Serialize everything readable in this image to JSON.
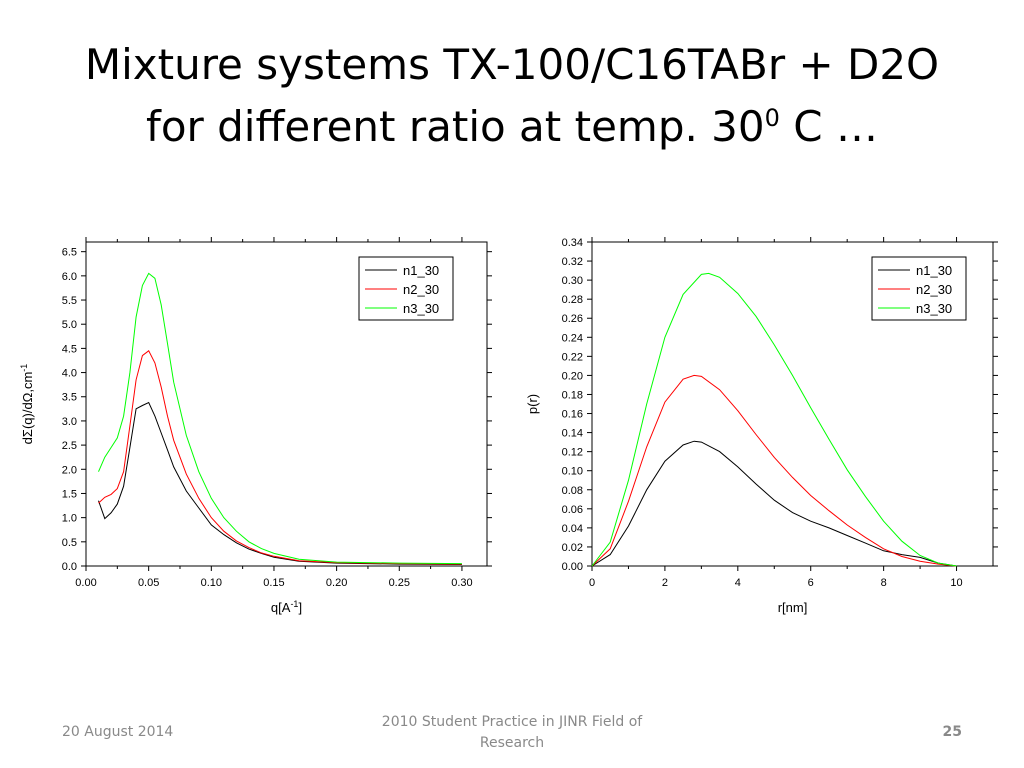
{
  "slide": {
    "title_line1": "Mixture systems TX-100/C16TABr + D2O",
    "title_line2_pre": "for different ratio at temp. 30",
    "title_sup": "0",
    "title_line2_post": " C …"
  },
  "footer": {
    "date": "20 August 2014",
    "center": "2010 Student Practice in JINR Field of Research",
    "page": "25"
  },
  "chart_data": [
    {
      "type": "line",
      "xlabel": "q[A",
      "xlabel_sup": "-1",
      "xlabel_post": "]",
      "ylabel": "dΣ(q)/dΩ,cm",
      "ylabel_sup": "-1",
      "xlim": [
        0.0,
        0.32
      ],
      "ylim": [
        0.0,
        6.7
      ],
      "xticks": [
        0.0,
        0.05,
        0.1,
        0.15,
        0.2,
        0.25,
        0.3
      ],
      "xtick_labels": [
        "0.00",
        "0.05",
        "0.10",
        "0.15",
        "0.20",
        "0.25",
        "0.30"
      ],
      "yticks": [
        0.0,
        0.5,
        1.0,
        1.5,
        2.0,
        2.5,
        3.0,
        3.5,
        4.0,
        4.5,
        5.0,
        5.5,
        6.0,
        6.5
      ],
      "ytick_labels": [
        "0.0",
        "0.5",
        "1.0",
        "1.5",
        "2.0",
        "2.5",
        "3.0",
        "3.5",
        "4.0",
        "4.5",
        "5.0",
        "5.5",
        "6.0",
        "6.5"
      ],
      "grid": false,
      "legend_position": "top-right",
      "series": [
        {
          "name": "n1_30",
          "color": "#000000",
          "x": [
            0.01,
            0.015,
            0.02,
            0.025,
            0.03,
            0.035,
            0.04,
            0.045,
            0.05,
            0.055,
            0.06,
            0.065,
            0.07,
            0.08,
            0.09,
            0.1,
            0.11,
            0.12,
            0.13,
            0.14,
            0.15,
            0.17,
            0.2,
            0.25,
            0.3
          ],
          "y": [
            1.35,
            0.98,
            1.1,
            1.28,
            1.65,
            2.45,
            3.25,
            3.32,
            3.38,
            3.1,
            2.75,
            2.4,
            2.05,
            1.55,
            1.2,
            0.85,
            0.65,
            0.48,
            0.35,
            0.26,
            0.18,
            0.1,
            0.06,
            0.04,
            0.03
          ]
        },
        {
          "name": "n2_30",
          "color": "#ff0000",
          "x": [
            0.01,
            0.015,
            0.02,
            0.025,
            0.03,
            0.035,
            0.04,
            0.045,
            0.05,
            0.055,
            0.06,
            0.065,
            0.07,
            0.08,
            0.09,
            0.1,
            0.11,
            0.12,
            0.13,
            0.14,
            0.15,
            0.17,
            0.2,
            0.25,
            0.3
          ],
          "y": [
            1.3,
            1.42,
            1.48,
            1.6,
            1.95,
            2.9,
            3.85,
            4.35,
            4.45,
            4.2,
            3.7,
            3.1,
            2.6,
            1.9,
            1.4,
            1.0,
            0.72,
            0.52,
            0.38,
            0.27,
            0.2,
            0.11,
            0.07,
            0.05,
            0.04
          ]
        },
        {
          "name": "n3_30",
          "color": "#00ff00",
          "x": [
            0.01,
            0.015,
            0.02,
            0.025,
            0.03,
            0.035,
            0.04,
            0.045,
            0.05,
            0.055,
            0.06,
            0.065,
            0.07,
            0.08,
            0.09,
            0.1,
            0.11,
            0.12,
            0.13,
            0.14,
            0.15,
            0.17,
            0.2,
            0.25,
            0.3
          ],
          "y": [
            1.95,
            2.25,
            2.45,
            2.65,
            3.1,
            4.0,
            5.15,
            5.8,
            6.05,
            5.95,
            5.4,
            4.6,
            3.8,
            2.7,
            1.95,
            1.4,
            1.0,
            0.72,
            0.5,
            0.36,
            0.26,
            0.14,
            0.08,
            0.06,
            0.05
          ]
        }
      ]
    },
    {
      "type": "line",
      "xlabel": "r[nm]",
      "ylabel": "p(r)",
      "xlim": [
        0,
        11
      ],
      "ylim": [
        0.0,
        0.34
      ],
      "xticks": [
        0,
        2,
        4,
        6,
        8,
        10
      ],
      "xtick_labels": [
        "0",
        "2",
        "4",
        "6",
        "8",
        "10"
      ],
      "yticks": [
        0.0,
        0.02,
        0.04,
        0.06,
        0.08,
        0.1,
        0.12,
        0.14,
        0.16,
        0.18,
        0.2,
        0.22,
        0.24,
        0.26,
        0.28,
        0.3,
        0.32,
        0.34
      ],
      "ytick_labels": [
        "0.00",
        "0.02",
        "0.04",
        "0.06",
        "0.08",
        "0.10",
        "0.12",
        "0.14",
        "0.16",
        "0.18",
        "0.20",
        "0.22",
        "0.24",
        "0.26",
        "0.28",
        "0.30",
        "0.32",
        "0.34"
      ],
      "grid": false,
      "legend_position": "top-right",
      "series": [
        {
          "name": "n1_30",
          "color": "#000000",
          "x": [
            0,
            0.5,
            1.0,
            1.5,
            2.0,
            2.5,
            2.8,
            3.0,
            3.5,
            4.0,
            4.5,
            5.0,
            5.5,
            6.0,
            6.5,
            7.0,
            7.5,
            8.0,
            8.5,
            9.0,
            9.5,
            10.0
          ],
          "y": [
            0.0,
            0.012,
            0.042,
            0.08,
            0.11,
            0.127,
            0.131,
            0.13,
            0.12,
            0.104,
            0.086,
            0.069,
            0.056,
            0.047,
            0.04,
            0.032,
            0.024,
            0.016,
            0.012,
            0.009,
            0.003,
            0.0
          ]
        },
        {
          "name": "n2_30",
          "color": "#ff0000",
          "x": [
            0,
            0.5,
            1.0,
            1.5,
            2.0,
            2.5,
            2.8,
            3.0,
            3.5,
            4.0,
            4.5,
            5.0,
            5.5,
            6.0,
            6.5,
            7.0,
            7.5,
            8.0,
            8.5,
            9.0,
            9.5,
            10.0
          ],
          "y": [
            0.0,
            0.018,
            0.068,
            0.125,
            0.172,
            0.196,
            0.2,
            0.199,
            0.185,
            0.163,
            0.138,
            0.114,
            0.093,
            0.074,
            0.058,
            0.043,
            0.03,
            0.018,
            0.01,
            0.005,
            0.002,
            0.0
          ]
        },
        {
          "name": "n3_30",
          "color": "#00ff00",
          "x": [
            0,
            0.5,
            1.0,
            1.5,
            2.0,
            2.5,
            3.0,
            3.2,
            3.5,
            4.0,
            4.5,
            5.0,
            5.5,
            6.0,
            6.5,
            7.0,
            7.5,
            8.0,
            8.5,
            9.0,
            9.5,
            10.0
          ],
          "y": [
            0.0,
            0.025,
            0.09,
            0.17,
            0.24,
            0.285,
            0.306,
            0.307,
            0.303,
            0.286,
            0.262,
            0.232,
            0.2,
            0.166,
            0.133,
            0.101,
            0.073,
            0.047,
            0.026,
            0.011,
            0.003,
            0.0
          ]
        }
      ]
    }
  ]
}
